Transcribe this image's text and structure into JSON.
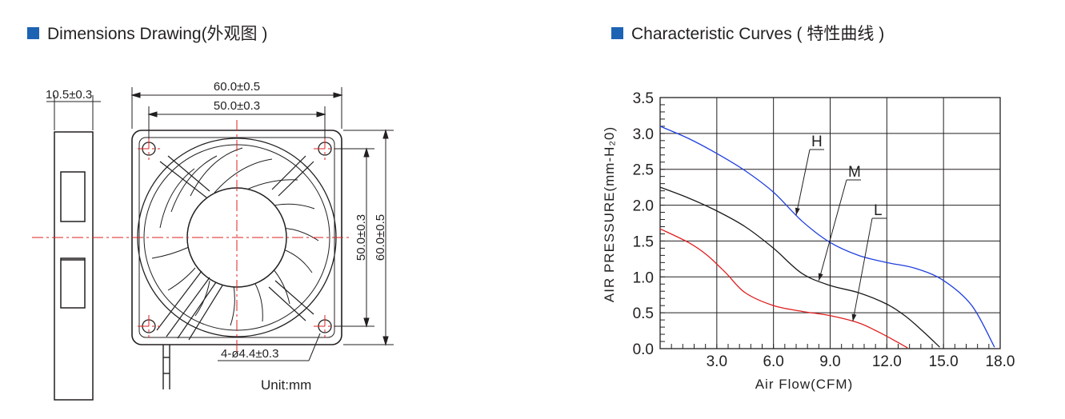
{
  "headings": {
    "left": "Dimensions Drawing(外观图 )",
    "right": "Characteristic Curves ( 特性曲线 )",
    "accent_color": "#1d63b4"
  },
  "drawing": {
    "side_width": "10.5±0.3",
    "overall_width": "60.0±0.5",
    "hole_spacing_h": "50.0±0.3",
    "hole_spacing_v": "50.0±0.3",
    "overall_height": "60.0±0.5",
    "holes": "4-ø4.4±0.3",
    "unit": "Unit:mm",
    "centerline_color": "#e02020"
  },
  "chart_data": {
    "type": "line",
    "xlabel": "Air Flow(CFM)",
    "ylabel": "AIR PRESSURE(mm-H₂0)",
    "xlim": [
      0,
      18.0
    ],
    "ylim": [
      0,
      3.5
    ],
    "x_ticks": [
      "3.0",
      "6.0",
      "9.0",
      "12.0",
      "15.0",
      "18.0"
    ],
    "y_ticks": [
      "0.0",
      "0.5",
      "1.0",
      "1.5",
      "2.0",
      "2.5",
      "3.0",
      "3.5"
    ],
    "grid": true,
    "series": [
      {
        "name": "H",
        "color": "#1f3fe0",
        "x": [
          0,
          1.5,
          3,
          4.5,
          6,
          7.5,
          9,
          10.5,
          12,
          13.5,
          15,
          16.5,
          17.7
        ],
        "y": [
          3.1,
          2.93,
          2.72,
          2.48,
          2.18,
          1.78,
          1.48,
          1.3,
          1.2,
          1.12,
          0.95,
          0.6,
          0.02
        ]
      },
      {
        "name": "M",
        "color": "#1a1a1a",
        "x": [
          0,
          1.5,
          3,
          4.5,
          6,
          7.5,
          9,
          10.5,
          12,
          13,
          14,
          14.8
        ],
        "y": [
          2.25,
          2.1,
          1.92,
          1.7,
          1.4,
          1.05,
          0.88,
          0.78,
          0.62,
          0.45,
          0.22,
          0.02
        ]
      },
      {
        "name": "L",
        "color": "#e01e1e",
        "x": [
          0,
          1.5,
          2.5,
          3.5,
          4.5,
          6,
          7.5,
          9,
          10.5,
          11.5,
          12.5,
          13.1
        ],
        "y": [
          1.67,
          1.48,
          1.3,
          1.05,
          0.78,
          0.6,
          0.52,
          0.46,
          0.36,
          0.24,
          0.1,
          0.01
        ]
      }
    ]
  }
}
